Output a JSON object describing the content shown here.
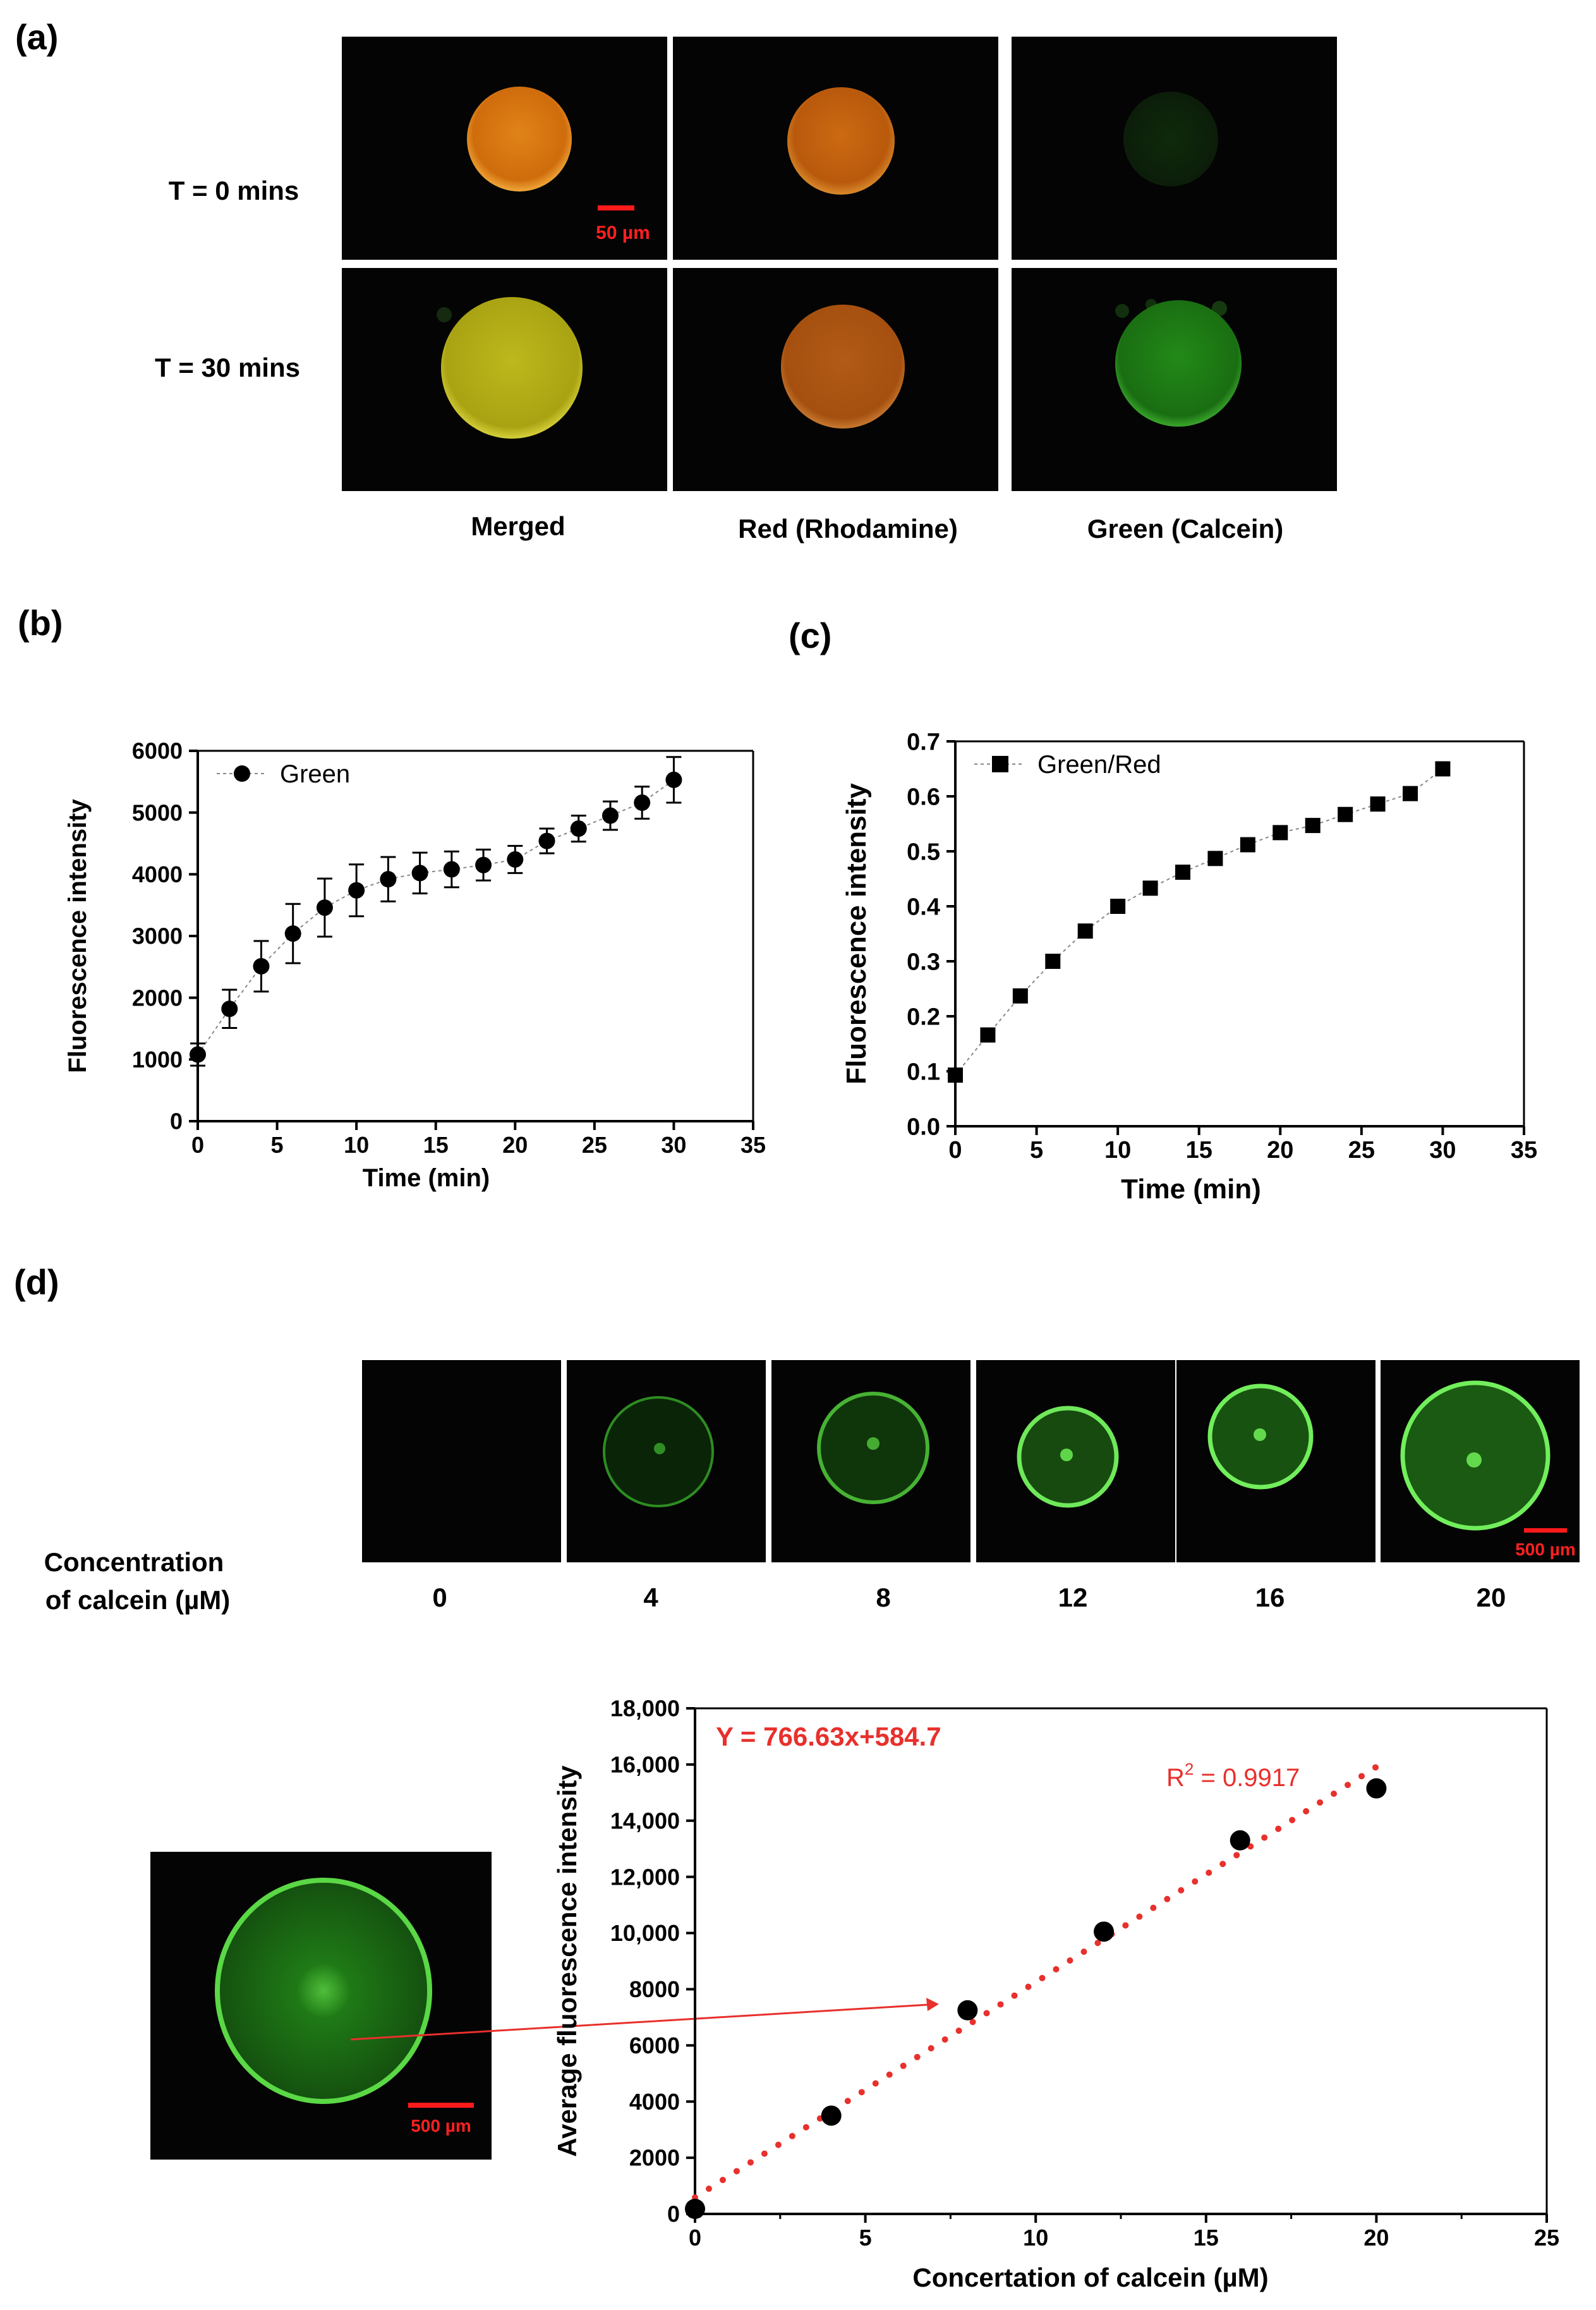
{
  "panels": {
    "a": {
      "label": "(a)",
      "row_labels": [
        "T = 0 mins",
        "T = 30 mins"
      ],
      "col_labels": [
        "Merged",
        "Red (Rhodamine)",
        "Green (Calcein)"
      ],
      "scale_bar": "50 µm",
      "image_colors": {
        "merged_t0": "#d9760f",
        "red_t0": "#c8640f",
        "green_t0": "#0c1e08",
        "merged_t30": "#b7b21a",
        "red_t30": "#b85e16",
        "green_t30": "#1d7a16"
      }
    },
    "b": {
      "label": "(b)"
    },
    "c": {
      "label": "(c)"
    },
    "d": {
      "label": "(d)",
      "conc_label_line1": "Concentration",
      "conc_label_line2": "of calcein (µM)",
      "concentrations": [
        "0",
        "4",
        "8",
        "12",
        "16",
        "20"
      ],
      "scale_bar": "500 µm",
      "inset_scale_bar": "500 µm",
      "fit_equation": "Y = 766.63x+584.7",
      "r2_prefix": "R",
      "r2_sup": "2",
      "r2_value": " = 0.9917",
      "colors": {
        "fit": "#e8302c",
        "ring": "#6fe85a"
      }
    }
  },
  "chart_data": [
    {
      "id": "b",
      "type": "scatter",
      "legend": "Green",
      "xlabel": "Time (min)",
      "ylabel": "Fluorescence intensity",
      "xlim": [
        0,
        35
      ],
      "ylim": [
        0,
        6000
      ],
      "xticks": [
        0,
        5,
        10,
        15,
        20,
        25,
        30,
        35
      ],
      "xtick_labels": [
        "0",
        "5",
        "10",
        "15",
        "20",
        "25",
        "30",
        "35"
      ],
      "yticks": [
        0,
        1000,
        2000,
        3000,
        4000,
        5000,
        6000
      ],
      "ytick_labels": [
        "0",
        "1000",
        "2000",
        "3000",
        "4000",
        "5000",
        "6000"
      ],
      "x": [
        0,
        2,
        4,
        6,
        8,
        10,
        12,
        14,
        16,
        18,
        20,
        22,
        24,
        26,
        28,
        30
      ],
      "y": [
        1080,
        1820,
        2510,
        3040,
        3460,
        3740,
        3920,
        4020,
        4080,
        4150,
        4240,
        4540,
        4740,
        4950,
        5160,
        5530
      ],
      "err": [
        180,
        310,
        410,
        480,
        470,
        420,
        360,
        330,
        290,
        250,
        220,
        200,
        210,
        230,
        260,
        370
      ]
    },
    {
      "id": "c",
      "type": "scatter",
      "legend": "Green/Red",
      "xlabel": "Time (min)",
      "ylabel": "Fluorescence intensity",
      "xlim": [
        0,
        35
      ],
      "ylim": [
        0,
        0.7
      ],
      "xticks": [
        0,
        5,
        10,
        15,
        20,
        25,
        30,
        35
      ],
      "xtick_labels": [
        "0",
        "5",
        "10",
        "15",
        "20",
        "25",
        "30",
        "35"
      ],
      "yticks": [
        0,
        0.1,
        0.2,
        0.3,
        0.4,
        0.5,
        0.6,
        0.7
      ],
      "ytick_labels": [
        "0.0",
        "0.1",
        "0.2",
        "0.3",
        "0.4",
        "0.5",
        "0.6",
        "0.7"
      ],
      "x": [
        0,
        2,
        4,
        6,
        8,
        10,
        12,
        14,
        16,
        18,
        20,
        22,
        24,
        26,
        28,
        30
      ],
      "y": [
        0.093,
        0.166,
        0.237,
        0.3,
        0.355,
        0.4,
        0.433,
        0.462,
        0.487,
        0.512,
        0.534,
        0.547,
        0.567,
        0.586,
        0.605,
        0.65
      ]
    },
    {
      "id": "d",
      "type": "scatter",
      "xlabel": "Concertation of calcein (µM)",
      "ylabel": "Average fluorescence intensity",
      "xlim": [
        0,
        25
      ],
      "ylim": [
        0,
        18000
      ],
      "xticks": [
        0,
        5,
        10,
        15,
        20,
        25
      ],
      "xtick_labels": [
        "0",
        "5",
        "10",
        "15",
        "20",
        "25"
      ],
      "yticks": [
        0,
        2000,
        4000,
        6000,
        8000,
        10000,
        12000,
        14000,
        16000,
        18000
      ],
      "ytick_labels": [
        "0",
        "2000",
        "4000",
        "6000",
        "8000",
        "10,000",
        "12,000",
        "14,000",
        "16,000",
        "18,000"
      ],
      "x": [
        0,
        4,
        8,
        12,
        16,
        20
      ],
      "y": [
        180,
        3500,
        7250,
        10050,
        13300,
        15150
      ],
      "fit": {
        "slope": 766.63,
        "intercept": 584.7,
        "x_range": [
          0,
          20
        ]
      }
    }
  ]
}
